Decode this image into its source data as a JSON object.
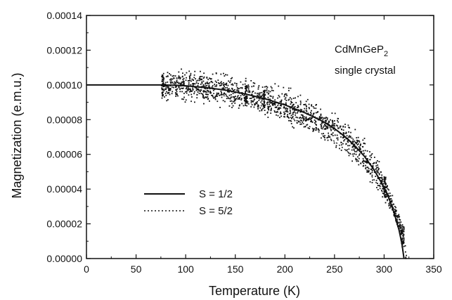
{
  "chart_data": {
    "type": "scatter",
    "title": "",
    "xlabel": "Temperature (K)",
    "ylabel": "Magnetization (e.m.u.)",
    "xlim": [
      0,
      350
    ],
    "ylim": [
      0,
      0.00014
    ],
    "grid": false,
    "x_ticks": [
      0,
      50,
      100,
      150,
      200,
      250,
      300,
      350
    ],
    "x_tick_labels": [
      "0",
      "50",
      "100",
      "150",
      "200",
      "250",
      "300",
      "350"
    ],
    "y_ticks": [
      0,
      2e-05,
      4e-05,
      6e-05,
      8e-05,
      0.0001,
      0.00012,
      0.00014
    ],
    "y_tick_labels": [
      "0.00000",
      "0.00002",
      "0.00004",
      "0.00006",
      "0.00008",
      "0.00010",
      "0.00012",
      "0.00014"
    ],
    "annotation": {
      "main": "CdMnGeP",
      "subscript": "2",
      "line2": "single crystal"
    },
    "legend": {
      "placement": "lower-left",
      "entries": [
        {
          "label": "S = 1/2",
          "style": "solid"
        },
        {
          "label": "S = 5/2",
          "style": "dotted"
        }
      ]
    },
    "series": [
      {
        "name": "S = 1/2",
        "style": "solid",
        "x": [
          0,
          20,
          40,
          60,
          75,
          90,
          100,
          120,
          140,
          160,
          180,
          200,
          220,
          240,
          250,
          260,
          270,
          280,
          290,
          300,
          305,
          310,
          315,
          318,
          320
        ],
        "y": [
          0.0001,
          0.0001,
          0.0001,
          0.0001,
          0.0001,
          9.98e-05,
          9.95e-05,
          9.85e-05,
          9.7e-05,
          9.48e-05,
          9.2e-05,
          8.85e-05,
          8.4e-05,
          7.85e-05,
          7.48e-05,
          7.05e-05,
          6.52e-05,
          5.9e-05,
          5.1e-05,
          4.1e-05,
          3.45e-05,
          2.65e-05,
          1.65e-05,
          8.5e-06,
          0
        ]
      },
      {
        "name": "S = 5/2",
        "style": "dotted",
        "x": [
          75,
          100,
          125,
          150,
          175,
          200,
          225,
          250,
          270,
          285,
          300,
          310,
          315,
          320
        ],
        "y": [
          9.95e-05,
          9.78e-05,
          9.55e-05,
          9.23e-05,
          8.82e-05,
          8.28e-05,
          7.6e-05,
          6.75e-05,
          5.85e-05,
          4.95e-05,
          3.7e-05,
          2.6e-05,
          1.75e-05,
          0
        ]
      },
      {
        "name": "",
        "style": "markers",
        "x_range": [
          75,
          322
        ],
        "approx_trend": "follows S = 1/2 curve with noise about ±0.000006",
        "x": [
          76,
          90,
          105,
          120,
          135,
          150,
          160,
          178,
          190,
          205,
          220,
          235,
          250,
          265,
          280,
          290,
          300,
          310,
          318,
          322
        ],
        "y": [
          0.0001,
          0.0001,
          0.0001,
          9.85e-05,
          9.75e-05,
          9.55e-05,
          9.45e-05,
          9.15e-05,
          9e-05,
          8.75e-05,
          8.3e-05,
          7.85e-05,
          7.45e-05,
          6.8e-05,
          5.95e-05,
          5.2e-05,
          4.15e-05,
          2.75e-05,
          1.45e-05,
          0
        ]
      }
    ]
  }
}
